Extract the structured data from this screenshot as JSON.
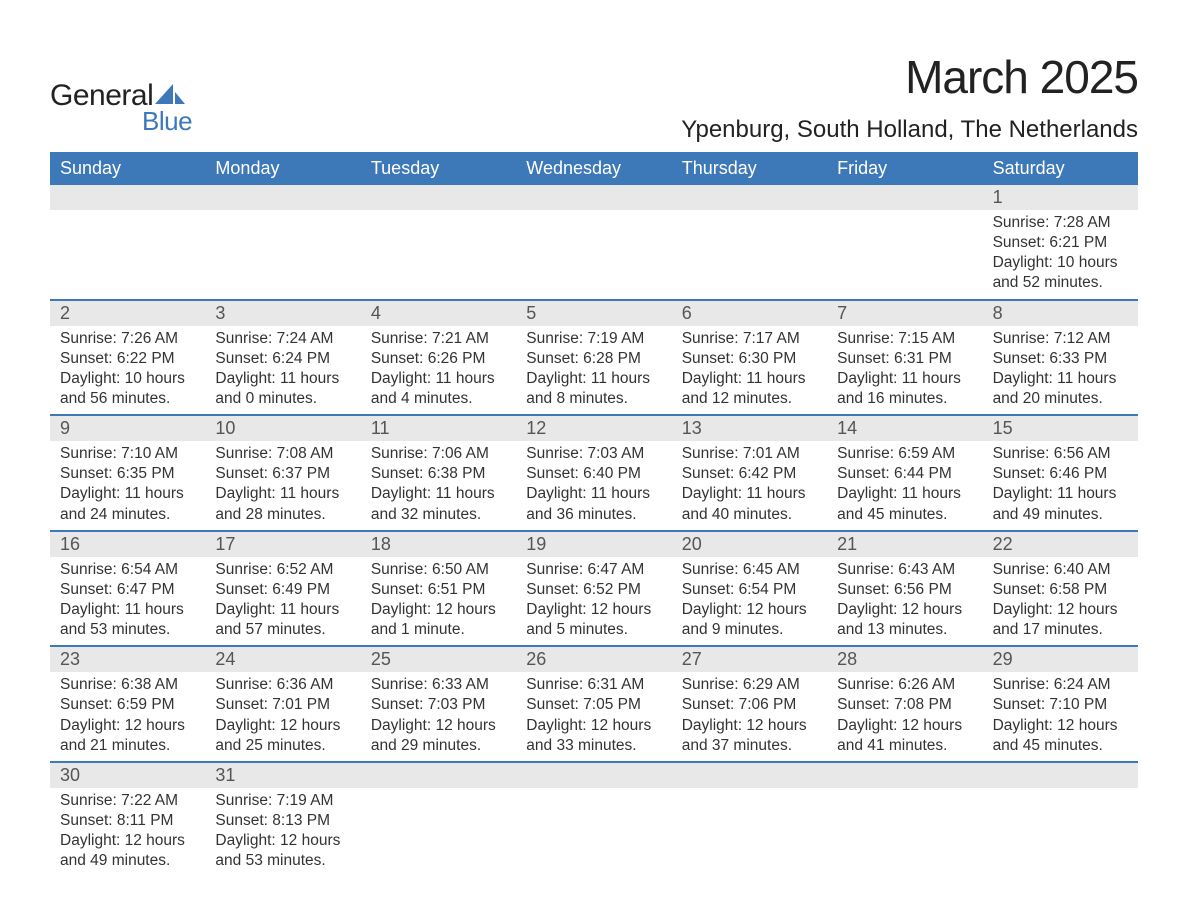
{
  "logo": {
    "word1": "General",
    "word2": "Blue",
    "icon_color": "#3d78b9"
  },
  "title": "March 2025",
  "location": "Ypenburg, South Holland, The Netherlands",
  "colors": {
    "header_bg": "#3d78b9",
    "header_fg": "#ffffff",
    "band_bg": "#e8e8e8",
    "row_border": "#3d78b9",
    "text": "#333333",
    "daynum": "#555555"
  },
  "weekdays": [
    "Sunday",
    "Monday",
    "Tuesday",
    "Wednesday",
    "Thursday",
    "Friday",
    "Saturday"
  ],
  "weeks": [
    [
      {
        "n": "",
        "sunrise": "",
        "sunset": "",
        "dl1": "",
        "dl2": ""
      },
      {
        "n": "",
        "sunrise": "",
        "sunset": "",
        "dl1": "",
        "dl2": ""
      },
      {
        "n": "",
        "sunrise": "",
        "sunset": "",
        "dl1": "",
        "dl2": ""
      },
      {
        "n": "",
        "sunrise": "",
        "sunset": "",
        "dl1": "",
        "dl2": ""
      },
      {
        "n": "",
        "sunrise": "",
        "sunset": "",
        "dl1": "",
        "dl2": ""
      },
      {
        "n": "",
        "sunrise": "",
        "sunset": "",
        "dl1": "",
        "dl2": ""
      },
      {
        "n": "1",
        "sunrise": "Sunrise: 7:28 AM",
        "sunset": "Sunset: 6:21 PM",
        "dl1": "Daylight: 10 hours",
        "dl2": "and 52 minutes."
      }
    ],
    [
      {
        "n": "2",
        "sunrise": "Sunrise: 7:26 AM",
        "sunset": "Sunset: 6:22 PM",
        "dl1": "Daylight: 10 hours",
        "dl2": "and 56 minutes."
      },
      {
        "n": "3",
        "sunrise": "Sunrise: 7:24 AM",
        "sunset": "Sunset: 6:24 PM",
        "dl1": "Daylight: 11 hours",
        "dl2": "and 0 minutes."
      },
      {
        "n": "4",
        "sunrise": "Sunrise: 7:21 AM",
        "sunset": "Sunset: 6:26 PM",
        "dl1": "Daylight: 11 hours",
        "dl2": "and 4 minutes."
      },
      {
        "n": "5",
        "sunrise": "Sunrise: 7:19 AM",
        "sunset": "Sunset: 6:28 PM",
        "dl1": "Daylight: 11 hours",
        "dl2": "and 8 minutes."
      },
      {
        "n": "6",
        "sunrise": "Sunrise: 7:17 AM",
        "sunset": "Sunset: 6:30 PM",
        "dl1": "Daylight: 11 hours",
        "dl2": "and 12 minutes."
      },
      {
        "n": "7",
        "sunrise": "Sunrise: 7:15 AM",
        "sunset": "Sunset: 6:31 PM",
        "dl1": "Daylight: 11 hours",
        "dl2": "and 16 minutes."
      },
      {
        "n": "8",
        "sunrise": "Sunrise: 7:12 AM",
        "sunset": "Sunset: 6:33 PM",
        "dl1": "Daylight: 11 hours",
        "dl2": "and 20 minutes."
      }
    ],
    [
      {
        "n": "9",
        "sunrise": "Sunrise: 7:10 AM",
        "sunset": "Sunset: 6:35 PM",
        "dl1": "Daylight: 11 hours",
        "dl2": "and 24 minutes."
      },
      {
        "n": "10",
        "sunrise": "Sunrise: 7:08 AM",
        "sunset": "Sunset: 6:37 PM",
        "dl1": "Daylight: 11 hours",
        "dl2": "and 28 minutes."
      },
      {
        "n": "11",
        "sunrise": "Sunrise: 7:06 AM",
        "sunset": "Sunset: 6:38 PM",
        "dl1": "Daylight: 11 hours",
        "dl2": "and 32 minutes."
      },
      {
        "n": "12",
        "sunrise": "Sunrise: 7:03 AM",
        "sunset": "Sunset: 6:40 PM",
        "dl1": "Daylight: 11 hours",
        "dl2": "and 36 minutes."
      },
      {
        "n": "13",
        "sunrise": "Sunrise: 7:01 AM",
        "sunset": "Sunset: 6:42 PM",
        "dl1": "Daylight: 11 hours",
        "dl2": "and 40 minutes."
      },
      {
        "n": "14",
        "sunrise": "Sunrise: 6:59 AM",
        "sunset": "Sunset: 6:44 PM",
        "dl1": "Daylight: 11 hours",
        "dl2": "and 45 minutes."
      },
      {
        "n": "15",
        "sunrise": "Sunrise: 6:56 AM",
        "sunset": "Sunset: 6:46 PM",
        "dl1": "Daylight: 11 hours",
        "dl2": "and 49 minutes."
      }
    ],
    [
      {
        "n": "16",
        "sunrise": "Sunrise: 6:54 AM",
        "sunset": "Sunset: 6:47 PM",
        "dl1": "Daylight: 11 hours",
        "dl2": "and 53 minutes."
      },
      {
        "n": "17",
        "sunrise": "Sunrise: 6:52 AM",
        "sunset": "Sunset: 6:49 PM",
        "dl1": "Daylight: 11 hours",
        "dl2": "and 57 minutes."
      },
      {
        "n": "18",
        "sunrise": "Sunrise: 6:50 AM",
        "sunset": "Sunset: 6:51 PM",
        "dl1": "Daylight: 12 hours",
        "dl2": "and 1 minute."
      },
      {
        "n": "19",
        "sunrise": "Sunrise: 6:47 AM",
        "sunset": "Sunset: 6:52 PM",
        "dl1": "Daylight: 12 hours",
        "dl2": "and 5 minutes."
      },
      {
        "n": "20",
        "sunrise": "Sunrise: 6:45 AM",
        "sunset": "Sunset: 6:54 PM",
        "dl1": "Daylight: 12 hours",
        "dl2": "and 9 minutes."
      },
      {
        "n": "21",
        "sunrise": "Sunrise: 6:43 AM",
        "sunset": "Sunset: 6:56 PM",
        "dl1": "Daylight: 12 hours",
        "dl2": "and 13 minutes."
      },
      {
        "n": "22",
        "sunrise": "Sunrise: 6:40 AM",
        "sunset": "Sunset: 6:58 PM",
        "dl1": "Daylight: 12 hours",
        "dl2": "and 17 minutes."
      }
    ],
    [
      {
        "n": "23",
        "sunrise": "Sunrise: 6:38 AM",
        "sunset": "Sunset: 6:59 PM",
        "dl1": "Daylight: 12 hours",
        "dl2": "and 21 minutes."
      },
      {
        "n": "24",
        "sunrise": "Sunrise: 6:36 AM",
        "sunset": "Sunset: 7:01 PM",
        "dl1": "Daylight: 12 hours",
        "dl2": "and 25 minutes."
      },
      {
        "n": "25",
        "sunrise": "Sunrise: 6:33 AM",
        "sunset": "Sunset: 7:03 PM",
        "dl1": "Daylight: 12 hours",
        "dl2": "and 29 minutes."
      },
      {
        "n": "26",
        "sunrise": "Sunrise: 6:31 AM",
        "sunset": "Sunset: 7:05 PM",
        "dl1": "Daylight: 12 hours",
        "dl2": "and 33 minutes."
      },
      {
        "n": "27",
        "sunrise": "Sunrise: 6:29 AM",
        "sunset": "Sunset: 7:06 PM",
        "dl1": "Daylight: 12 hours",
        "dl2": "and 37 minutes."
      },
      {
        "n": "28",
        "sunrise": "Sunrise: 6:26 AM",
        "sunset": "Sunset: 7:08 PM",
        "dl1": "Daylight: 12 hours",
        "dl2": "and 41 minutes."
      },
      {
        "n": "29",
        "sunrise": "Sunrise: 6:24 AM",
        "sunset": "Sunset: 7:10 PM",
        "dl1": "Daylight: 12 hours",
        "dl2": "and 45 minutes."
      }
    ],
    [
      {
        "n": "30",
        "sunrise": "Sunrise: 7:22 AM",
        "sunset": "Sunset: 8:11 PM",
        "dl1": "Daylight: 12 hours",
        "dl2": "and 49 minutes."
      },
      {
        "n": "31",
        "sunrise": "Sunrise: 7:19 AM",
        "sunset": "Sunset: 8:13 PM",
        "dl1": "Daylight: 12 hours",
        "dl2": "and 53 minutes."
      },
      {
        "n": "",
        "sunrise": "",
        "sunset": "",
        "dl1": "",
        "dl2": ""
      },
      {
        "n": "",
        "sunrise": "",
        "sunset": "",
        "dl1": "",
        "dl2": ""
      },
      {
        "n": "",
        "sunrise": "",
        "sunset": "",
        "dl1": "",
        "dl2": ""
      },
      {
        "n": "",
        "sunrise": "",
        "sunset": "",
        "dl1": "",
        "dl2": ""
      },
      {
        "n": "",
        "sunrise": "",
        "sunset": "",
        "dl1": "",
        "dl2": ""
      }
    ]
  ]
}
